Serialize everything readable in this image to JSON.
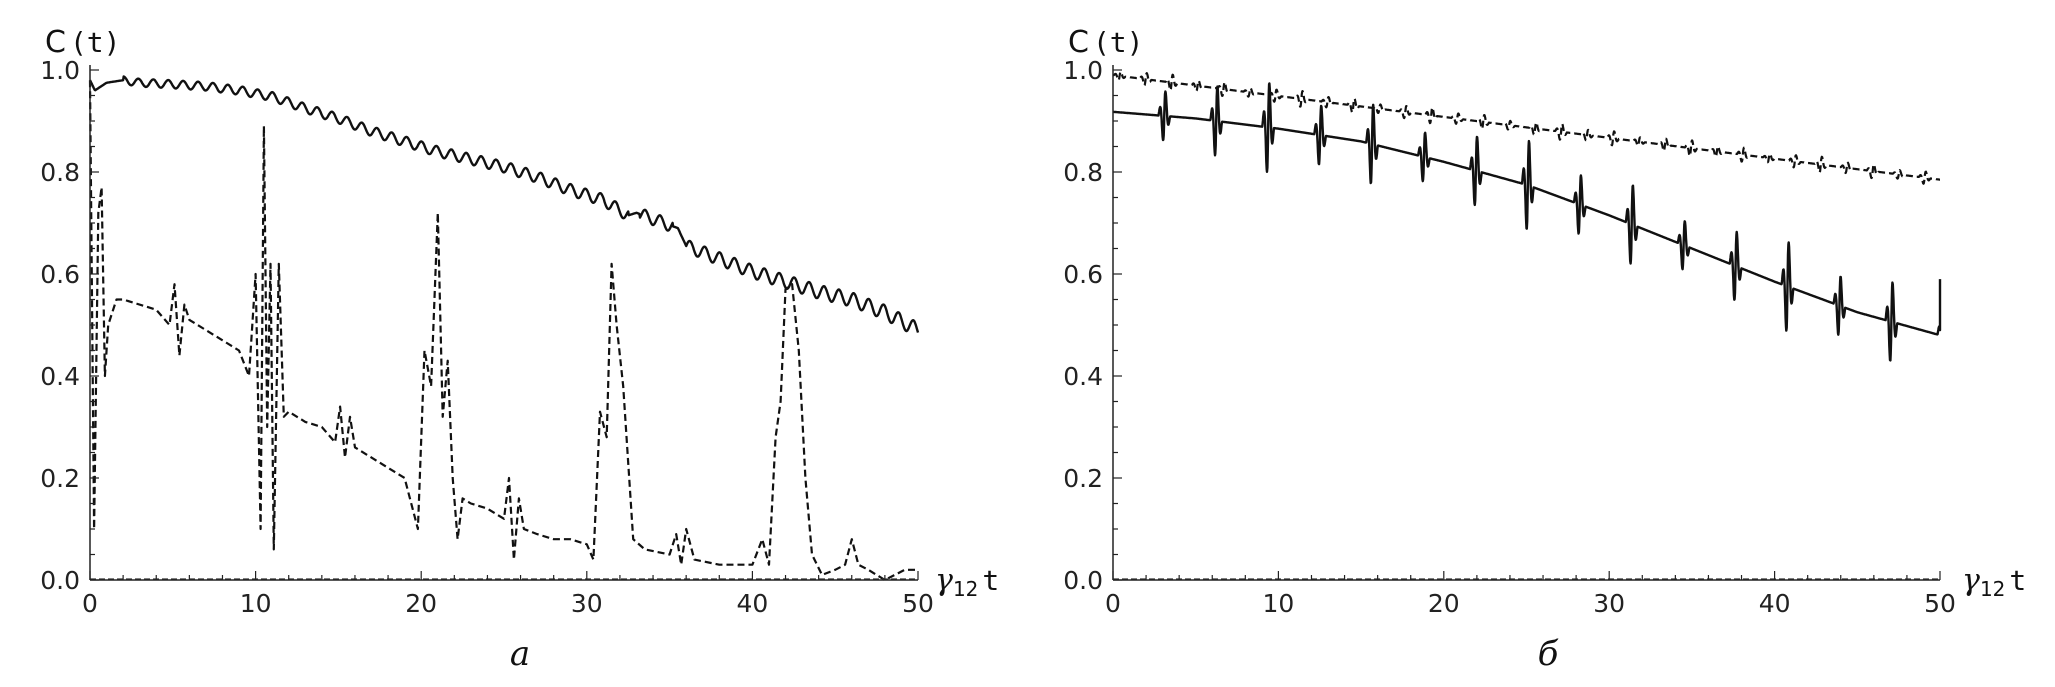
{
  "chart_data": [
    {
      "type": "line",
      "panel_label": "а",
      "ylabel": {
        "main": "C",
        "arg": "(t)"
      },
      "xlabel": {
        "main": "γ",
        "sub": "12",
        "var": "t"
      },
      "xlim": [
        0,
        50
      ],
      "ylim": [
        0,
        1
      ],
      "xticks": [
        "0",
        "10",
        "20",
        "30",
        "40",
        "50"
      ],
      "yticks": [
        "0.0",
        "0.2",
        "0.4",
        "0.6",
        "0.8",
        "1.0"
      ],
      "grid": false,
      "series": [
        {
          "style": "solid",
          "color": "#111111",
          "oscillation": {
            "amplitude": 0.012,
            "period": 0.9
          },
          "x": [
            0,
            0.3,
            1,
            2,
            3,
            5,
            7,
            9,
            11,
            13,
            15,
            17,
            19,
            21,
            23,
            25,
            27,
            29,
            31,
            32.5,
            33,
            35.5,
            36,
            38,
            40,
            42,
            44,
            46,
            48,
            50
          ],
          "y": [
            0.98,
            0.96,
            0.975,
            0.98,
            0.975,
            0.972,
            0.968,
            0.96,
            0.948,
            0.925,
            0.905,
            0.88,
            0.86,
            0.84,
            0.825,
            0.81,
            0.79,
            0.765,
            0.745,
            0.715,
            0.72,
            0.69,
            0.655,
            0.63,
            0.605,
            0.585,
            0.565,
            0.55,
            0.525,
            0.49
          ]
        },
        {
          "style": "dashed",
          "color": "#111111",
          "x": [
            0,
            0.25,
            0.5,
            0.7,
            0.9,
            1.1,
            1.3,
            1.6,
            2,
            4,
            4.8,
            5.1,
            5.4,
            5.7,
            6,
            7,
            8,
            9,
            9.6,
            10,
            10.3,
            10.5,
            10.7,
            10.9,
            11.1,
            11.4,
            11.7,
            12,
            13,
            14,
            14.8,
            15.1,
            15.4,
            15.7,
            16,
            17,
            18,
            19,
            19.8,
            20.2,
            20.6,
            21,
            21.3,
            21.6,
            21.9,
            22.2,
            22.5,
            23,
            24,
            25,
            25.3,
            25.6,
            25.9,
            26.2,
            27,
            28,
            29,
            30,
            30.4,
            30.8,
            31.2,
            31.5,
            31.8,
            32.2,
            32.8,
            33.5,
            35,
            35.4,
            35.7,
            36,
            36.5,
            38,
            40,
            40.6,
            41,
            41.4,
            41.7,
            42,
            42.4,
            42.8,
            43.2,
            43.6,
            44.2,
            45,
            45.6,
            46,
            46.4,
            47,
            48,
            48.6,
            49.2,
            50
          ],
          "y": [
            0.98,
            0.1,
            0.72,
            0.77,
            0.4,
            0.5,
            0.52,
            0.55,
            0.55,
            0.53,
            0.5,
            0.58,
            0.44,
            0.54,
            0.51,
            0.49,
            0.47,
            0.45,
            0.4,
            0.6,
            0.1,
            0.89,
            0.3,
            0.62,
            0.06,
            0.62,
            0.32,
            0.33,
            0.31,
            0.3,
            0.27,
            0.34,
            0.24,
            0.32,
            0.26,
            0.24,
            0.22,
            0.2,
            0.1,
            0.45,
            0.38,
            0.72,
            0.32,
            0.43,
            0.2,
            0.08,
            0.16,
            0.15,
            0.14,
            0.12,
            0.2,
            0.04,
            0.16,
            0.1,
            0.09,
            0.08,
            0.08,
            0.07,
            0.04,
            0.33,
            0.28,
            0.62,
            0.5,
            0.38,
            0.08,
            0.06,
            0.05,
            0.09,
            0.03,
            0.1,
            0.04,
            0.03,
            0.03,
            0.08,
            0.03,
            0.28,
            0.35,
            0.57,
            0.58,
            0.45,
            0.2,
            0.05,
            0.01,
            0.02,
            0.03,
            0.08,
            0.03,
            0.02,
            0.0,
            0.01,
            0.02,
            0.02
          ]
        }
      ]
    },
    {
      "type": "line",
      "panel_label": "б",
      "ylabel": {
        "main": "C",
        "arg": "(t)"
      },
      "xlabel": {
        "main": "γ",
        "sub": "12",
        "var": "t"
      },
      "xlim": [
        0,
        50
      ],
      "ylim": [
        0,
        1
      ],
      "xticks": [
        "0",
        "10",
        "20",
        "30",
        "40",
        "50"
      ],
      "yticks": [
        "0.0",
        "0.2",
        "0.4",
        "0.6",
        "0.8",
        "1.0"
      ],
      "grid": false,
      "series": [
        {
          "style": "dashed",
          "color": "#111111",
          "trend": {
            "x": [
              0,
              50
            ],
            "y": [
              0.99,
              0.785
            ]
          },
          "spikes": {
            "start": 0.4,
            "spacing": 1.57,
            "amplitude": 0.025
          }
        },
        {
          "style": "solid",
          "color": "#111111",
          "trend": {
            "x": [
              0,
              5,
              10,
              15,
              20,
              25,
              30,
              35,
              40,
              45,
              50
            ],
            "y": [
              0.918,
              0.905,
              0.885,
              0.86,
              0.82,
              0.775,
              0.715,
              0.65,
              0.585,
              0.525,
              0.48
            ]
          },
          "spikes": {
            "start": 3.1,
            "spacing": 3.14,
            "amplitude": 0.14
          },
          "endpoint": {
            "x": 50,
            "y": 0.59
          }
        }
      ]
    }
  ]
}
